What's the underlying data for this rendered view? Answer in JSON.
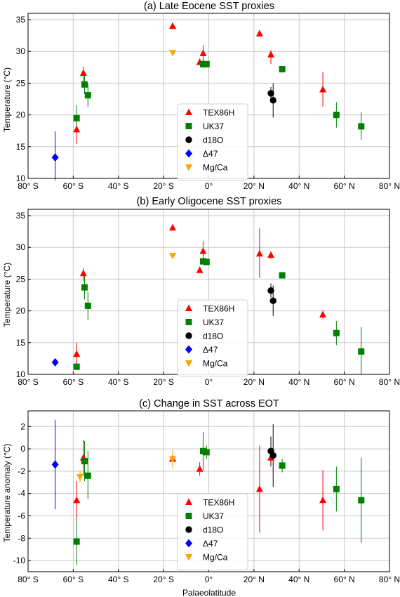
{
  "figure": {
    "xlabel": "Palaeolatitude"
  },
  "series_styles": [
    {
      "name": "TEX86H",
      "color": "#ff0000",
      "marker": "triangle-up"
    },
    {
      "name": "UK37",
      "color": "#008000",
      "marker": "square"
    },
    {
      "name": "d18O",
      "color": "#000000",
      "marker": "circle"
    },
    {
      "name": "Δ47",
      "color": "#0000ff",
      "marker": "diamond"
    },
    {
      "name": "Mg/Ca",
      "color": "#ffa500",
      "marker": "triangle-down"
    }
  ],
  "chart_data": [
    {
      "type": "scatter",
      "title": "(a) Late Eocene SST proxies",
      "xlabel": "",
      "ylabel": "Temperature (°C)",
      "xlim": [
        -80,
        80
      ],
      "ylim": [
        10,
        36
      ],
      "xticks": [
        -80,
        -60,
        -40,
        -20,
        0,
        20,
        40,
        60,
        80
      ],
      "xticklabels": [
        "80° S",
        "60° S",
        "40° S",
        "20° S",
        "0°",
        "20° N",
        "40° N",
        "60° N",
        "80° N"
      ],
      "yticks": [
        10,
        15,
        20,
        25,
        30,
        35
      ],
      "yticklabels": [
        "10",
        "15",
        "20",
        "25",
        "30",
        "35"
      ],
      "grid": true,
      "legend_position": "center-bottom",
      "series": [
        {
          "name": "TEX86H",
          "points": [
            {
              "x": -58.5,
              "y": 17.7,
              "lo": 15.4,
              "hi": 19.2
            },
            {
              "x": -55.5,
              "y": 26.6,
              "lo": 25.2,
              "hi": 27.6
            },
            {
              "x": -16.0,
              "y": 34.0,
              "lo": 34.0,
              "hi": 34.0
            },
            {
              "x": -4.0,
              "y": 28.3,
              "lo": 28.3,
              "hi": 28.3
            },
            {
              "x": -2.5,
              "y": 29.7,
              "lo": 28.3,
              "hi": 31.0
            },
            {
              "x": 22.5,
              "y": 32.8,
              "lo": 32.8,
              "hi": 32.8
            },
            {
              "x": 27.5,
              "y": 29.5,
              "lo": 28.0,
              "hi": 30.2
            },
            {
              "x": 50.5,
              "y": 24.0,
              "lo": 21.3,
              "hi": 26.7
            }
          ]
        },
        {
          "name": "UK37",
          "points": [
            {
              "x": -58.5,
              "y": 19.5,
              "lo": 17.5,
              "hi": 21.5
            },
            {
              "x": -55.0,
              "y": 24.8,
              "lo": 23.3,
              "hi": 26.2
            },
            {
              "x": -53.5,
              "y": 23.1,
              "lo": 21.2,
              "hi": 24.9
            },
            {
              "x": -2.5,
              "y": 28.0,
              "lo": 27.4,
              "hi": 28.6
            },
            {
              "x": -1.0,
              "y": 28.0,
              "lo": 27.5,
              "hi": 28.4
            },
            {
              "x": 32.5,
              "y": 27.2,
              "lo": 26.8,
              "hi": 27.6
            },
            {
              "x": 56.5,
              "y": 20.0,
              "lo": 18.0,
              "hi": 22.0
            },
            {
              "x": 67.5,
              "y": 18.2,
              "lo": 16.1,
              "hi": 20.4
            }
          ]
        },
        {
          "name": "d18O",
          "points": [
            {
              "x": 27.5,
              "y": 23.4,
              "lo": 22.3,
              "hi": 24.4
            },
            {
              "x": 28.5,
              "y": 22.3,
              "lo": 19.6,
              "hi": 25.0
            }
          ]
        },
        {
          "name": "Δ47",
          "points": [
            {
              "x": -68.0,
              "y": 13.3,
              "lo": 9.7,
              "hi": 17.4
            }
          ]
        },
        {
          "name": "Mg/Ca",
          "points": [
            {
              "x": -16.0,
              "y": 29.8,
              "lo": 29.8,
              "hi": 29.8
            }
          ]
        }
      ]
    },
    {
      "type": "scatter",
      "title": "(b) Early Oligocene SST proxies",
      "xlabel": "",
      "ylabel": "Temperature (°C)",
      "xlim": [
        -80,
        80
      ],
      "ylim": [
        10,
        36
      ],
      "xticks": [
        -80,
        -60,
        -40,
        -20,
        0,
        20,
        40,
        60,
        80
      ],
      "xticklabels": [
        "80° S",
        "60° S",
        "40° S",
        "20° S",
        "0°",
        "20° N",
        "40° N",
        "60° N",
        "80° N"
      ],
      "yticks": [
        10,
        15,
        20,
        25,
        30,
        35
      ],
      "yticklabels": [
        "10",
        "15",
        "20",
        "25",
        "30",
        "35"
      ],
      "grid": true,
      "legend_position": "center-bottom",
      "series": [
        {
          "name": "TEX86H",
          "points": [
            {
              "x": -58.5,
              "y": 13.2,
              "lo": 11.6,
              "hi": 15.0
            },
            {
              "x": -55.5,
              "y": 25.9,
              "lo": 24.7,
              "hi": 26.7
            },
            {
              "x": -16.0,
              "y": 33.1,
              "lo": 33.1,
              "hi": 33.1
            },
            {
              "x": -4.0,
              "y": 26.4,
              "lo": 26.4,
              "hi": 26.4
            },
            {
              "x": -2.5,
              "y": 29.4,
              "lo": 27.8,
              "hi": 31.0
            },
            {
              "x": 22.5,
              "y": 29.0,
              "lo": 25.2,
              "hi": 33.0
            },
            {
              "x": 27.5,
              "y": 28.8,
              "lo": 28.2,
              "hi": 29.3
            },
            {
              "x": 50.5,
              "y": 19.4,
              "lo": 18.7,
              "hi": 20.1
            }
          ]
        },
        {
          "name": "UK37",
          "points": [
            {
              "x": -58.5,
              "y": 11.2,
              "lo": 11.2,
              "hi": 11.2
            },
            {
              "x": -55.0,
              "y": 23.7,
              "lo": 21.8,
              "hi": 25.5
            },
            {
              "x": -53.5,
              "y": 20.8,
              "lo": 18.5,
              "hi": 23.0
            },
            {
              "x": -2.5,
              "y": 27.8,
              "lo": 27.3,
              "hi": 28.3
            },
            {
              "x": -1.0,
              "y": 27.7,
              "lo": 27.2,
              "hi": 28.1
            },
            {
              "x": 32.5,
              "y": 25.6,
              "lo": 25.1,
              "hi": 26.1
            },
            {
              "x": 56.5,
              "y": 16.5,
              "lo": 14.6,
              "hi": 18.4
            },
            {
              "x": 67.5,
              "y": 13.6,
              "lo": 10.0,
              "hi": 17.5
            }
          ]
        },
        {
          "name": "d18O",
          "points": [
            {
              "x": 27.5,
              "y": 23.2,
              "lo": 22.1,
              "hi": 24.3
            },
            {
              "x": 28.5,
              "y": 21.6,
              "lo": 19.2,
              "hi": 24.0
            }
          ]
        },
        {
          "name": "Δ47",
          "points": [
            {
              "x": -68.0,
              "y": 11.9,
              "lo": 11.9,
              "hi": 11.9
            }
          ]
        },
        {
          "name": "Mg/Ca",
          "points": [
            {
              "x": -16.0,
              "y": 28.7,
              "lo": 28.7,
              "hi": 28.7
            }
          ]
        }
      ]
    },
    {
      "type": "scatter",
      "title": "(c) Change in SST across EOT",
      "xlabel": "Palaeolatitude",
      "ylabel": "Temperature anomaly (°C)",
      "xlim": [
        -80,
        80
      ],
      "ylim": [
        -11,
        3.4
      ],
      "xticks": [
        -80,
        -60,
        -40,
        -20,
        0,
        20,
        40,
        60,
        80
      ],
      "xticklabels": [
        "80° S",
        "60° S",
        "40° S",
        "20° S",
        "0°",
        "20° N",
        "40° N",
        "60° N",
        "80° N"
      ],
      "yticks": [
        -10,
        -8,
        -6,
        -4,
        -2,
        0,
        2
      ],
      "yticklabels": [
        "-10",
        "-8",
        "-6",
        "-4",
        "-2",
        "0",
        "2"
      ],
      "grid": true,
      "legend_position": "center-bottom",
      "series": [
        {
          "name": "TEX86H",
          "points": [
            {
              "x": -58.5,
              "y": -4.6,
              "lo": -6.2,
              "hi": -2.9
            },
            {
              "x": -55.5,
              "y": -0.8,
              "lo": -2.4,
              "hi": 0.8
            },
            {
              "x": -16.0,
              "y": -0.9,
              "lo": -1.4,
              "hi": -0.4
            },
            {
              "x": -4.0,
              "y": -1.8,
              "lo": -2.4,
              "hi": -1.2
            },
            {
              "x": 22.5,
              "y": -3.6,
              "lo": -7.5,
              "hi": 0.3
            },
            {
              "x": 27.5,
              "y": -0.8,
              "lo": -1.6,
              "hi": 0.9
            },
            {
              "x": 50.5,
              "y": -4.6,
              "lo": -7.3,
              "hi": -1.9
            }
          ]
        },
        {
          "name": "UK37",
          "points": [
            {
              "x": -58.5,
              "y": -8.3,
              "lo": -10.4,
              "hi": -6.2
            },
            {
              "x": -55.0,
              "y": -1.1,
              "lo": -2.9,
              "hi": 0.7
            },
            {
              "x": -53.5,
              "y": -2.4,
              "lo": -4.5,
              "hi": -0.2
            },
            {
              "x": -2.5,
              "y": -0.2,
              "lo": -1.9,
              "hi": 1.5
            },
            {
              "x": -1.0,
              "y": -0.3,
              "lo": -0.9,
              "hi": 0.3
            },
            {
              "x": 32.5,
              "y": -1.5,
              "lo": -2.1,
              "hi": -0.9
            },
            {
              "x": 56.5,
              "y": -3.6,
              "lo": -5.6,
              "hi": -1.6
            },
            {
              "x": 67.5,
              "y": -4.6,
              "lo": -8.4,
              "hi": -0.8
            }
          ]
        },
        {
          "name": "d18O",
          "points": [
            {
              "x": 27.5,
              "y": -0.2,
              "lo": -1.5,
              "hi": 1.1
            },
            {
              "x": 28.5,
              "y": -0.6,
              "lo": -3.4,
              "hi": 2.2
            }
          ]
        },
        {
          "name": "Δ47",
          "points": [
            {
              "x": -68.0,
              "y": -1.4,
              "lo": -5.4,
              "hi": 2.6
            }
          ]
        },
        {
          "name": "Mg/Ca",
          "points": [
            {
              "x": -57.0,
              "y": -2.5,
              "lo": -3.0,
              "hi": -1.9
            },
            {
              "x": -16.0,
              "y": -0.9,
              "lo": -1.7,
              "hi": -0.1
            }
          ]
        }
      ]
    }
  ]
}
